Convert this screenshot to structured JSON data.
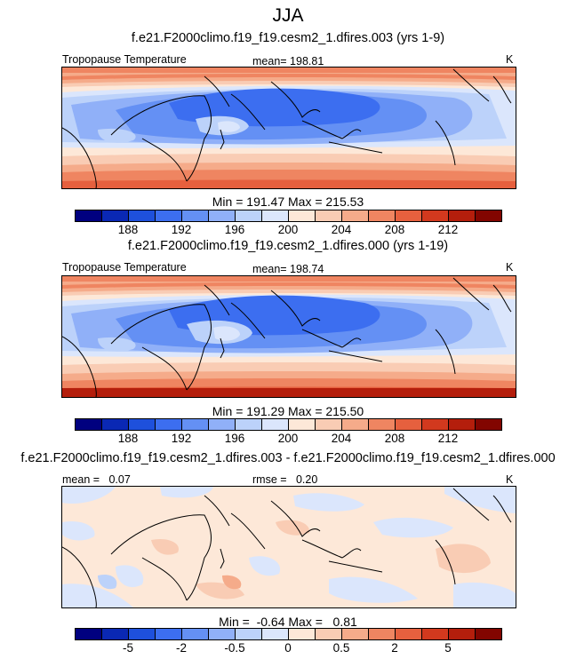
{
  "figure": {
    "title": "JJA",
    "panels": [
      {
        "case_title": "f.e21.F2000climo.f19_f19.cesm2_1.dfires.003 (yrs 1-9)",
        "left_label": "Tropopause Temperature",
        "center_label": "mean= 198.81",
        "units": "K",
        "minmax": "Min = 191.47 Max = 215.53",
        "colorbar_labels": [
          "188",
          "192",
          "196",
          "200",
          "204",
          "208",
          "212"
        ]
      },
      {
        "case_title": "f.e21.F2000climo.f19_f19.cesm2_1.dfires.000 (yrs 1-19)",
        "left_label": "Tropopause Temperature",
        "center_label": "mean= 198.74",
        "units": "K",
        "minmax": "Min = 191.29 Max = 215.50",
        "colorbar_labels": [
          "188",
          "192",
          "196",
          "200",
          "204",
          "208",
          "212"
        ]
      },
      {
        "case_title": "f.e21.F2000climo.f19_f19.cesm2_1.dfires.003 - f.e21.F2000climo.f19_f19.cesm2_1.dfires.000",
        "left_label": "mean =   0.07",
        "center_label": "rmse =   0.20",
        "units": "K",
        "minmax": "Min =  -0.64 Max =   0.81",
        "colorbar_labels": [
          "-5",
          "-2",
          "-0.5",
          "0",
          "0.5",
          "2",
          "5"
        ]
      }
    ],
    "colors": {
      "field": [
        "#00007f",
        "#0a28b4",
        "#1e50dc",
        "#3c6ef0",
        "#6490f4",
        "#90b0f8",
        "#bcd2fa",
        "#dbe6fc",
        "#fde8d8",
        "#f9ccb4",
        "#f5ab8a",
        "#ef8561",
        "#e6603e",
        "#d2391e",
        "#b41e0c",
        "#820500"
      ],
      "diff": [
        "#00007f",
        "#0a28b4",
        "#1e50dc",
        "#3c6ef0",
        "#6490f4",
        "#90b0f8",
        "#bcd2fa",
        "#dbe6fc",
        "#fde8d8",
        "#f9ccb4",
        "#f5ab8a",
        "#ef8561",
        "#e6603e",
        "#d2391e",
        "#b41e0c",
        "#820500"
      ]
    }
  }
}
